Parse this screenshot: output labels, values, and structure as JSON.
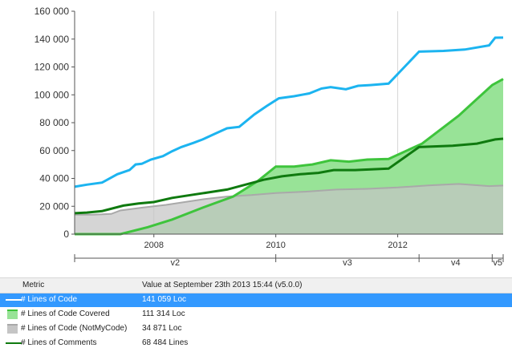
{
  "colors": {
    "loc": "#1cb4f0",
    "covered_fill": "#98e397",
    "covered_line": "#3ec43c",
    "notmycode_fill": "#c5c5c5",
    "notmycode_line": "#a9a9a9",
    "comments": "#0f7a0f",
    "selected_row": "#3399ff"
  },
  "chart_data": {
    "type": "area",
    "y_ticks": [
      "0",
      "20 000",
      "40 000",
      "60 000",
      "80 000",
      "100 000",
      "120 000",
      "140 000",
      "160 000"
    ],
    "ylim": [
      0,
      160000
    ],
    "xlim": [
      2006.7,
      2013.73
    ],
    "x_ticks": [
      {
        "value": 2008,
        "label": "2008"
      },
      {
        "value": 2010,
        "label": "2010"
      },
      {
        "value": 2012,
        "label": "2012"
      }
    ],
    "versions": [
      {
        "label": "v2",
        "start": 2006.7,
        "end": 2010.0
      },
      {
        "label": "v3",
        "start": 2010.0,
        "end": 2012.35
      },
      {
        "label": "v4",
        "start": 2012.35,
        "end": 2013.55
      },
      {
        "label": "v5",
        "start": 2013.55,
        "end": 2013.73
      }
    ],
    "grid": "vertical at year ticks",
    "series": [
      {
        "name": "# Lines of Code",
        "style": "line",
        "x": [
          2006.7,
          2006.9,
          2007.15,
          2007.4,
          2007.6,
          2007.7,
          2007.8,
          2007.95,
          2008.15,
          2008.3,
          2008.45,
          2008.65,
          2008.8,
          2009.0,
          2009.2,
          2009.4,
          2009.65,
          2009.85,
          2010.05,
          2010.3,
          2010.55,
          2010.75,
          2010.9,
          2011.15,
          2011.35,
          2011.55,
          2011.85,
          2012.35,
          2012.75,
          2013.1,
          2013.5,
          2013.6,
          2013.73
        ],
        "values": [
          34000,
          35500,
          37000,
          43000,
          46000,
          50000,
          50500,
          53500,
          56000,
          59500,
          62500,
          65500,
          68000,
          72000,
          76000,
          77000,
          86000,
          92000,
          97500,
          99000,
          101000,
          104500,
          105500,
          104000,
          106500,
          107000,
          108000,
          131000,
          131500,
          132500,
          135500,
          141000,
          141059
        ]
      },
      {
        "name": "# Lines of Code Covered",
        "style": "area",
        "x": [
          2006.7,
          2007.3,
          2007.45,
          2007.9,
          2008.3,
          2008.8,
          2009.3,
          2009.7,
          2010.0,
          2010.3,
          2010.6,
          2010.9,
          2011.2,
          2011.5,
          2011.85,
          2012.4,
          2013.0,
          2013.55,
          2013.73
        ],
        "values": [
          0,
          0,
          0,
          5000,
          10500,
          19000,
          27000,
          38000,
          48500,
          48500,
          50000,
          53000,
          52000,
          53500,
          54000,
          65000,
          85000,
          107000,
          111314
        ]
      },
      {
        "name": "# Lines of Code (NotMyCode)",
        "style": "area",
        "x": [
          2006.7,
          2007.0,
          2007.3,
          2007.45,
          2007.8,
          2008.2,
          2008.8,
          2009.2,
          2009.6,
          2010.0,
          2010.5,
          2011.0,
          2011.5,
          2012.0,
          2012.5,
          2013.0,
          2013.5,
          2013.73
        ],
        "values": [
          14000,
          14000,
          14500,
          17000,
          19000,
          21000,
          25000,
          27000,
          28000,
          29500,
          30500,
          32000,
          32500,
          33500,
          35000,
          36000,
          34500,
          34871
        ]
      },
      {
        "name": "# Lines of Comments",
        "style": "line",
        "x": [
          2006.7,
          2006.9,
          2007.15,
          2007.5,
          2007.75,
          2008.0,
          2008.3,
          2008.6,
          2008.9,
          2009.2,
          2009.5,
          2009.8,
          2010.1,
          2010.4,
          2010.7,
          2010.95,
          2011.3,
          2011.85,
          2012.35,
          2012.9,
          2013.3,
          2013.6,
          2013.73
        ],
        "values": [
          15000,
          15500,
          16500,
          20500,
          22000,
          23000,
          26000,
          28000,
          30000,
          32000,
          35500,
          39000,
          41500,
          43000,
          44000,
          46000,
          46000,
          47000,
          62500,
          63500,
          65000,
          68000,
          68484
        ]
      }
    ]
  },
  "legend": {
    "header_metric": "Metric",
    "header_value": "Value at September 23th 2013  15:44  (v5.0.0)",
    "rows": [
      {
        "name": "# Lines of Code",
        "value": "141 059 Loc"
      },
      {
        "name": "# Lines of Code Covered",
        "value": "111 314 Loc"
      },
      {
        "name": "# Lines of Code (NotMyCode)",
        "value": "34 871 Loc"
      },
      {
        "name": "# Lines of Comments",
        "value": "68 484 Lines"
      }
    ]
  }
}
